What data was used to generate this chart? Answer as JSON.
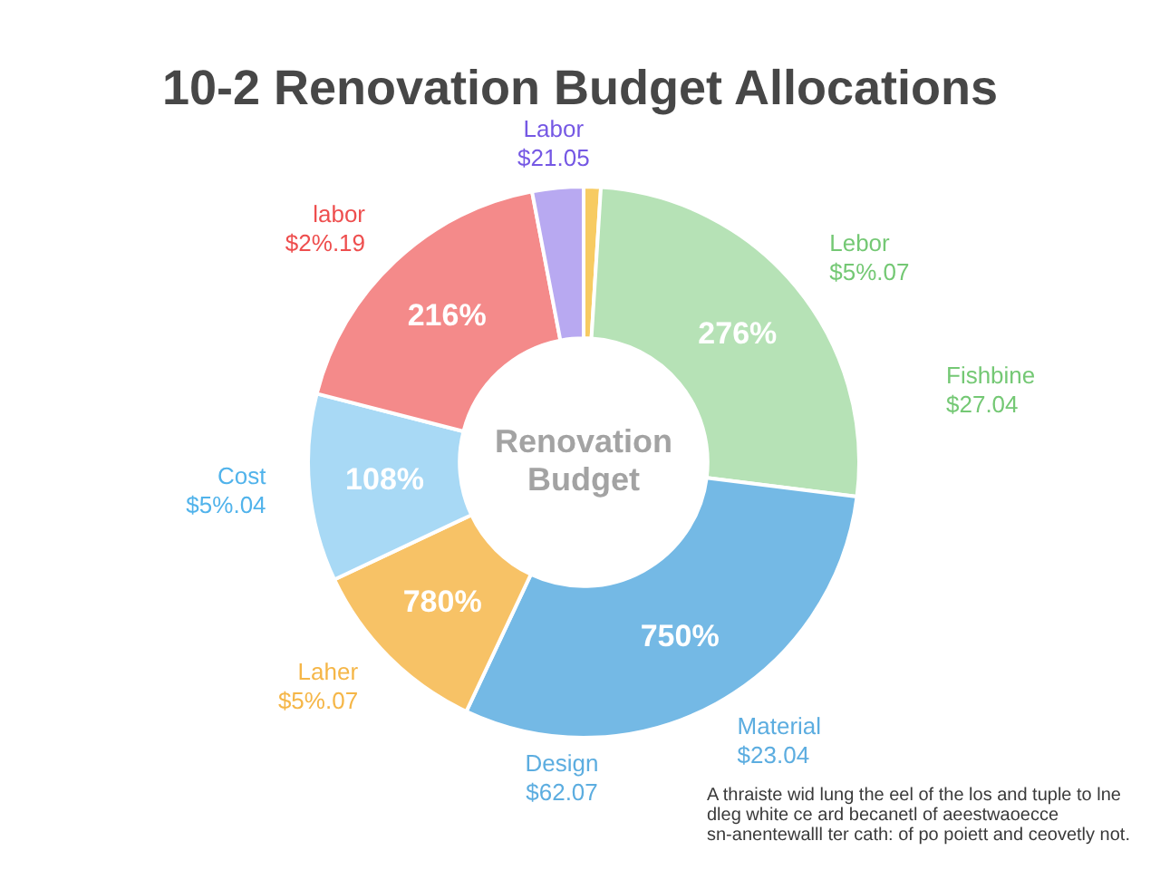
{
  "chart_data": {
    "type": "donut",
    "title": "10-2 Renovation Budget Allocations",
    "categories": [
      null,
      "Lebor $5%.07",
      "Material $23.04",
      "Laher $5%.07",
      "Cost $5%.04",
      "labor $2%.19",
      "Labor $21.05"
    ],
    "values": [
      1,
      26,
      30,
      11,
      11,
      18,
      3
    ],
    "colors": [
      "#f7cb62",
      "#b6e2b6",
      "#74b9e5",
      "#f7c266",
      "#a8d9f5",
      "#f48a8a",
      "#b8a9f1"
    ],
    "annotations": [
      "Fishbine $27.04",
      "Design $62.07",
      "Renovation Budget",
      "A thraiste wid lung the eel of the los and tuple to lne dleg white ce ard becanetl of aeestwaoecce sn-anentewalll ter cath: of po poiett and ceovetly not.",
      "276%",
      "750%",
      "780%",
      "108%",
      "216%"
    ]
  }
}
